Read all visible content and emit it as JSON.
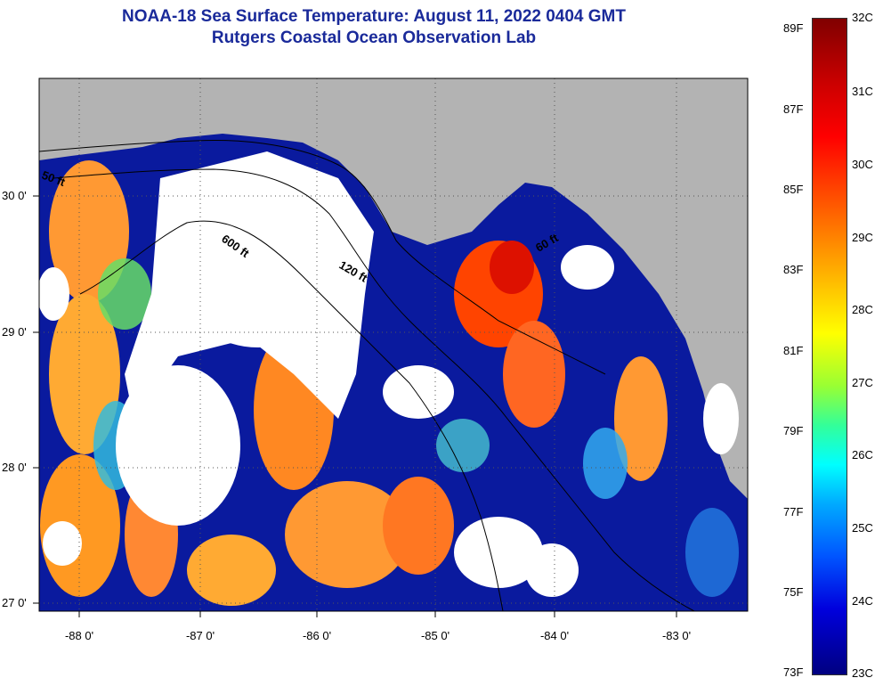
{
  "title": {
    "line1": "NOAA-18 Sea Surface Temperature:  August 11, 2022 0404 GMT",
    "line2": "Rutgers Coastal Ocean Observation Lab"
  },
  "map": {
    "lat_labels": [
      "30 0'",
      "29 0'",
      "28 0'",
      "27 0'"
    ],
    "lon_labels": [
      "-88 0'",
      "-87 0'",
      "-86 0'",
      "-85 0'",
      "-84 0'",
      "-83 0'"
    ],
    "isobaths": [
      "50 ft",
      "600 ft",
      "120 ft",
      "60 ft"
    ],
    "colors": {
      "land": "#b3b3b3",
      "cloud": "#ffffff",
      "contour": "#000000"
    }
  },
  "colorbar": {
    "fahrenheit": [
      "89F",
      "87F",
      "85F",
      "83F",
      "81F",
      "79F",
      "77F",
      "75F",
      "73F"
    ],
    "celsius": [
      "32C",
      "31C",
      "30C",
      "29C",
      "28C",
      "27C",
      "26C",
      "25C",
      "24C",
      "23C"
    ],
    "range_c": [
      23,
      32
    ],
    "range_f": [
      73,
      89
    ]
  }
}
